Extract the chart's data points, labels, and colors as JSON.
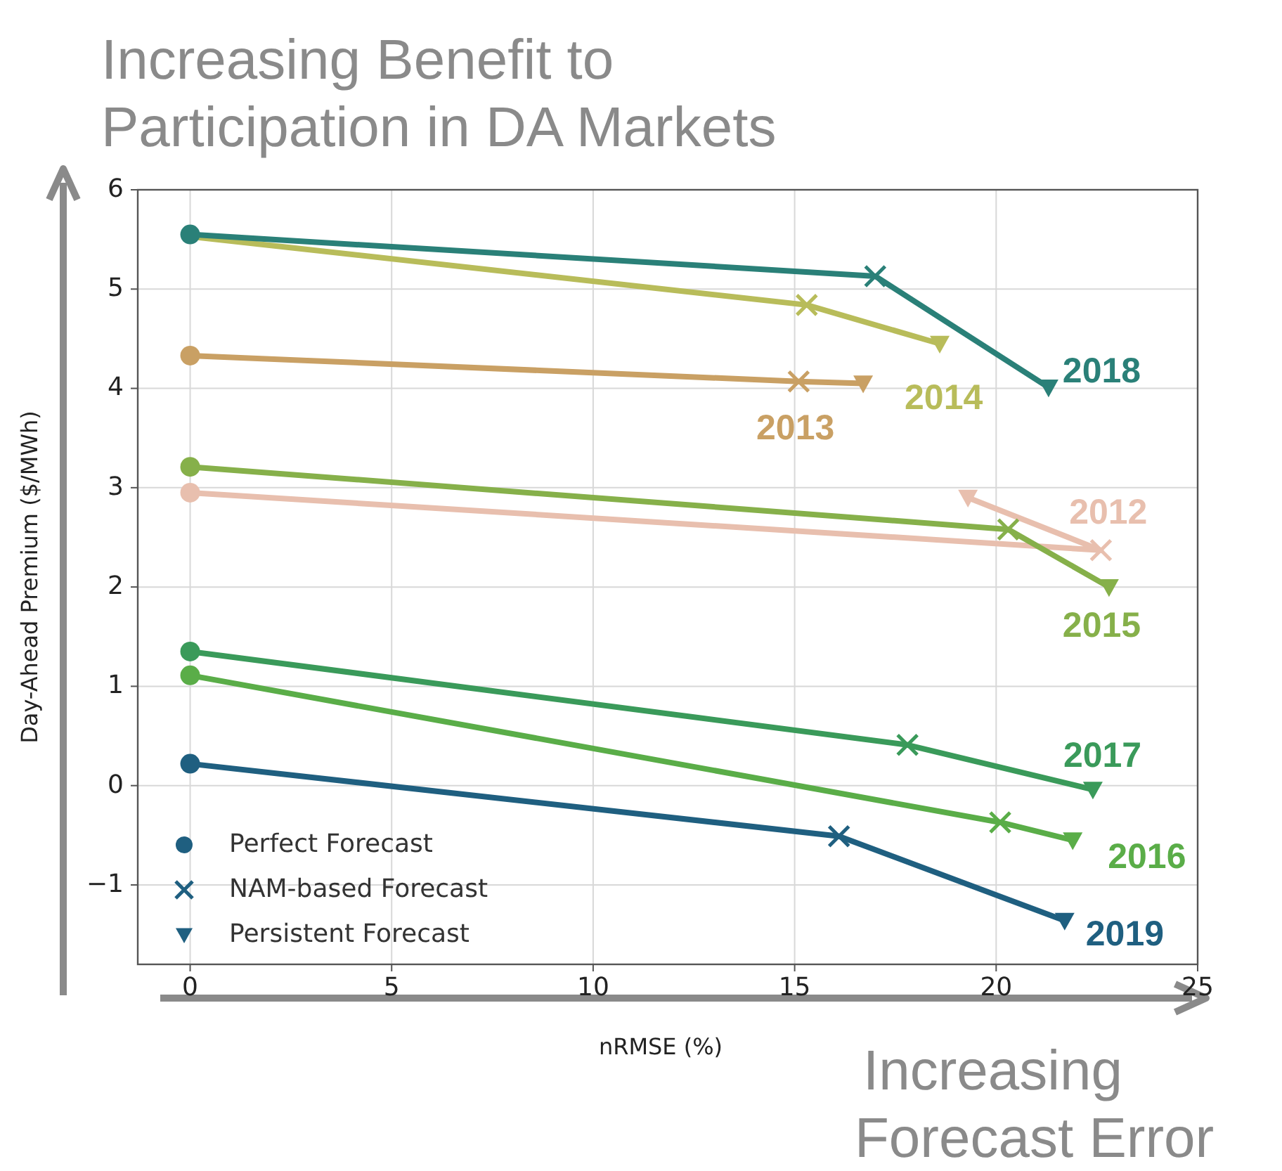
{
  "chart_data": {
    "type": "line",
    "title": "Increasing Benefit to Participation in DA Markets",
    "xlabel": "nRMSE (%)",
    "ylabel": "Day-Ahead Premium ($/MWh)",
    "annotations": [
      "Increasing Forecast Error"
    ],
    "xlim": [
      -1.3,
      25
    ],
    "xticks": [
      0,
      5,
      10,
      15,
      20,
      25
    ],
    "ylim": [
      -1.8,
      6
    ],
    "yticks": [
      {
        "value": -1,
        "label": "−1"
      },
      0,
      1,
      2,
      3,
      4,
      5,
      6
    ],
    "grid": true,
    "legend": "bottom left",
    "marker": "none",
    "line_style": "solid",
    "series": [
      {
        "name": "2012",
        "color": "#e8bfae",
        "x": [
          0,
          22.6,
          19.3
        ],
        "values": [
          2.95,
          2.37,
          2.9
        ]
      },
      {
        "name": "2013",
        "color": "#c9a064",
        "x": [
          0,
          15.1,
          16.7
        ],
        "values": [
          4.33,
          4.07,
          4.05
        ]
      },
      {
        "name": "2014",
        "color": "#b8bc5a",
        "x": [
          0,
          15.3,
          18.6
        ],
        "values": [
          5.53,
          4.84,
          4.45
        ]
      },
      {
        "name": "2015",
        "color": "#86b04a",
        "x": [
          0,
          20.3,
          22.8
        ],
        "values": [
          3.21,
          2.58,
          2.0
        ]
      },
      {
        "name": "2016",
        "color": "#5aad48",
        "x": [
          0,
          20.1,
          21.9
        ],
        "values": [
          1.11,
          -0.37,
          -0.55
        ]
      },
      {
        "name": "2017",
        "color": "#3a9a5a",
        "x": [
          0,
          17.8,
          22.4
        ],
        "values": [
          1.35,
          0.41,
          -0.04
        ]
      },
      {
        "name": "2018",
        "color": "#2a8078",
        "x": [
          0,
          17.0,
          21.3
        ],
        "values": [
          5.55,
          5.13,
          4.01
        ]
      },
      {
        "name": "2019",
        "color": "#1f5f80",
        "x": [
          0,
          16.1,
          21.7
        ],
        "values": [
          0.22,
          -0.51,
          -1.36
        ]
      },
      {
        "name": "Perfect Forecast",
        "type": "scatter",
        "marker": "circle",
        "color": "#1f5f80",
        "x": [
          0,
          0,
          0,
          0,
          0,
          0,
          0
        ],
        "values": [
          2.95,
          4.33,
          3.21,
          1.11,
          1.35,
          5.55,
          0.22
        ],
        "colors": [
          "#e8bfae",
          "#c9a064",
          "#86b04a",
          "#5aad48",
          "#3a9a5a",
          "#2a8078",
          "#1f5f80"
        ]
      },
      {
        "name": "NAM-based Forecast",
        "type": "scatter",
        "marker": "cross",
        "color": "#1f5f80",
        "x": [
          22.6,
          15.1,
          15.3,
          20.3,
          20.1,
          17.8,
          17.0,
          16.1
        ],
        "values": [
          2.37,
          4.07,
          4.84,
          2.58,
          -0.37,
          0.41,
          5.13,
          -0.51
        ],
        "colors": [
          "#e8bfae",
          "#c9a064",
          "#b8bc5a",
          "#86b04a",
          "#5aad48",
          "#3a9a5a",
          "#2a8078",
          "#1f5f80"
        ]
      },
      {
        "name": "Persistent Forecast",
        "type": "scatter",
        "marker": "triangle",
        "color": "#1f5f80",
        "x": [
          19.3,
          16.7,
          18.6,
          22.8,
          21.9,
          22.4,
          21.3,
          21.7
        ],
        "values": [
          2.9,
          4.05,
          4.45,
          2.0,
          -0.55,
          -0.04,
          4.01,
          -1.36
        ],
        "colors": [
          "#e8bfae",
          "#c9a064",
          "#b8bc5a",
          "#86b04a",
          "#5aad48",
          "#3a9a5a",
          "#2a8078",
          "#1f5f80"
        ]
      }
    ]
  }
}
